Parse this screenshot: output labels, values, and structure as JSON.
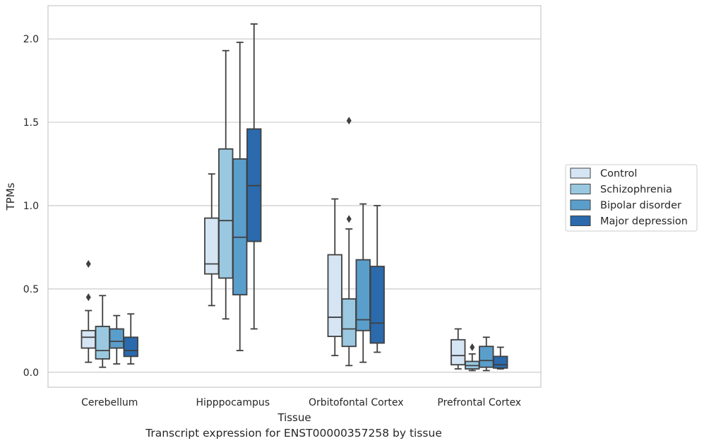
{
  "caption": "Transcript expression for ENST00000357258 by tissue",
  "chart_data": {
    "type": "box",
    "title": "",
    "xlabel": "Tissue",
    "ylabel": "TPMs",
    "ylim": [
      -0.09,
      2.2
    ],
    "yticks": [
      "0.0",
      "0.5",
      "1.0",
      "1.5",
      "2.0"
    ],
    "grid": "horizontal",
    "legend_position": "right",
    "categories": [
      "Cerebellum",
      "Hipppocampus",
      "Orbitofontal Cortex",
      "Prefrontal Cortex"
    ],
    "series": [
      {
        "name": "Control",
        "color": "#d6e5f4",
        "boxes": [
          {
            "whislo": 0.06,
            "q1": 0.145,
            "med": 0.21,
            "q3": 0.25,
            "whishi": 0.37,
            "fliers": [
              0.45,
              0.65
            ]
          },
          {
            "whislo": 0.4,
            "q1": 0.59,
            "med": 0.65,
            "q3": 0.925,
            "whishi": 1.19,
            "fliers": []
          },
          {
            "whislo": 0.1,
            "q1": 0.215,
            "med": 0.33,
            "q3": 0.705,
            "whishi": 1.04,
            "fliers": []
          },
          {
            "whislo": 0.02,
            "q1": 0.045,
            "med": 0.1,
            "q3": 0.195,
            "whishi": 0.26,
            "fliers": []
          }
        ]
      },
      {
        "name": "Schizophrenia",
        "color": "#9ac8e0",
        "boxes": [
          {
            "whislo": 0.03,
            "q1": 0.08,
            "med": 0.13,
            "q3": 0.275,
            "whishi": 0.46,
            "fliers": []
          },
          {
            "whislo": 0.32,
            "q1": 0.565,
            "med": 0.91,
            "q3": 1.34,
            "whishi": 1.93,
            "fliers": []
          },
          {
            "whislo": 0.04,
            "q1": 0.155,
            "med": 0.26,
            "q3": 0.44,
            "whishi": 0.86,
            "fliers": [
              0.92,
              1.51
            ]
          },
          {
            "whislo": 0.01,
            "q1": 0.02,
            "med": 0.04,
            "q3": 0.065,
            "whishi": 0.11,
            "fliers": [
              0.15
            ]
          }
        ]
      },
      {
        "name": "Bipolar disorder",
        "color": "#5a9ecb",
        "boxes": [
          {
            "whislo": 0.05,
            "q1": 0.145,
            "med": 0.185,
            "q3": 0.26,
            "whishi": 0.34,
            "fliers": []
          },
          {
            "whislo": 0.13,
            "q1": 0.465,
            "med": 0.81,
            "q3": 1.28,
            "whishi": 1.98,
            "fliers": []
          },
          {
            "whislo": 0.06,
            "q1": 0.25,
            "med": 0.315,
            "q3": 0.675,
            "whishi": 1.01,
            "fliers": []
          },
          {
            "whislo": 0.01,
            "q1": 0.03,
            "med": 0.07,
            "q3": 0.155,
            "whishi": 0.21,
            "fliers": []
          }
        ]
      },
      {
        "name": "Major depression",
        "color": "#2a6aad",
        "boxes": [
          {
            "whislo": 0.05,
            "q1": 0.095,
            "med": 0.13,
            "q3": 0.21,
            "whishi": 0.35,
            "fliers": []
          },
          {
            "whislo": 0.26,
            "q1": 0.785,
            "med": 1.12,
            "q3": 1.46,
            "whishi": 2.09,
            "fliers": []
          },
          {
            "whislo": 0.12,
            "q1": 0.175,
            "med": 0.295,
            "q3": 0.635,
            "whishi": 1.0,
            "fliers": []
          },
          {
            "whislo": 0.02,
            "q1": 0.025,
            "med": 0.045,
            "q3": 0.095,
            "whishi": 0.15,
            "fliers": []
          }
        ]
      }
    ]
  }
}
